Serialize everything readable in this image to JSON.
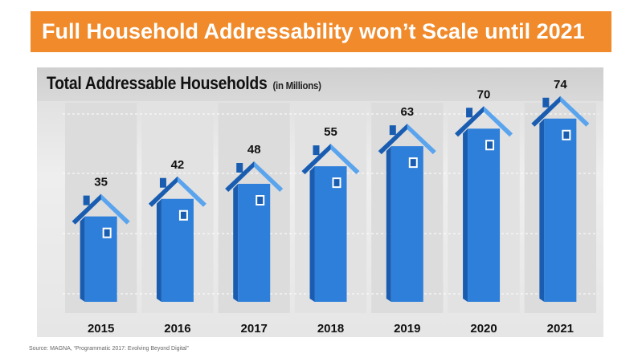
{
  "banner": {
    "title": "Full Household Addressability won’t Scale until 2021"
  },
  "source": "Source: MAGNA, “Programmatic 2017: Evolving Beyond Digital”",
  "colors": {
    "banner": "#f08a2a",
    "house": "#2e7fd9",
    "house_dark": "#1a5db0",
    "house_light": "#5aa4ee"
  },
  "icon": "house-icon",
  "chart_data": {
    "type": "bar",
    "title": "Total Addressable Households",
    "unit": "(in Millions)",
    "categories": [
      "2015",
      "2016",
      "2017",
      "2018",
      "2019",
      "2020",
      "2021"
    ],
    "series": [
      {
        "values": [
          35,
          42,
          48,
          55,
          63,
          70,
          74
        ]
      }
    ],
    "value_labels": [
      "35",
      "42",
      "48",
      "55",
      "63",
      "70",
      "74"
    ],
    "grid": true
  }
}
